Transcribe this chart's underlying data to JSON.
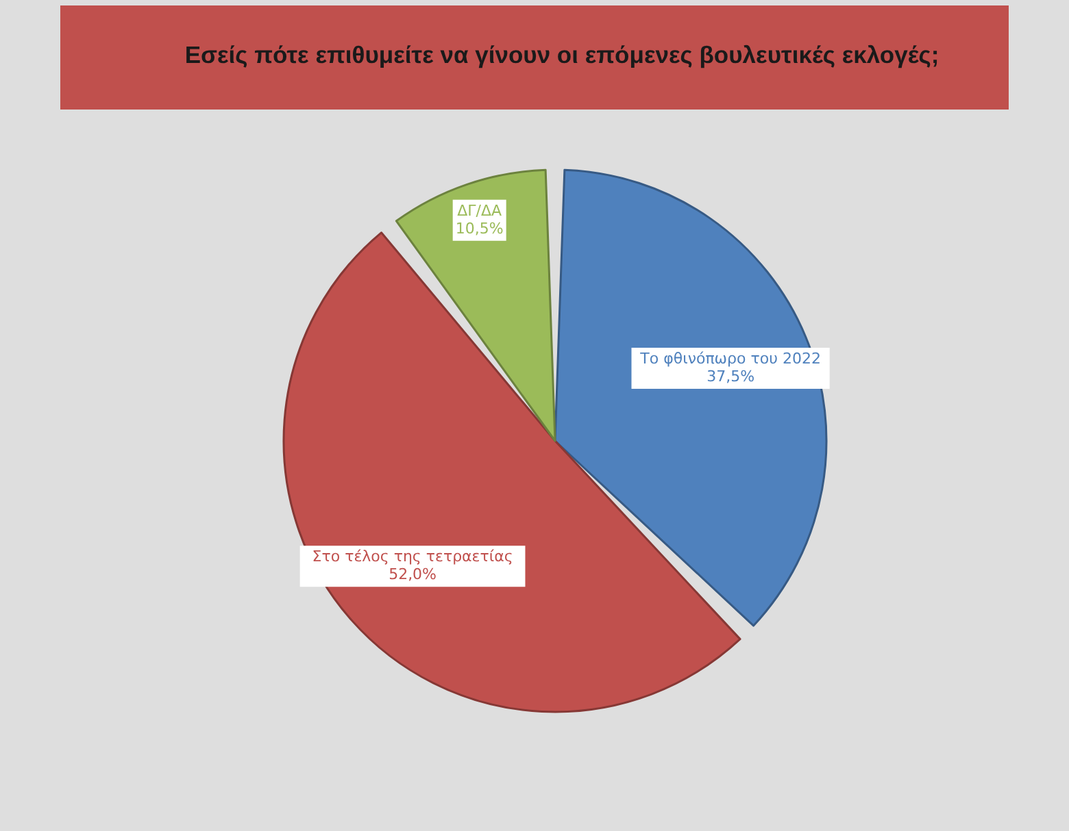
{
  "chart_data": {
    "type": "pie",
    "title": "Εσείς πότε επιθυμείτε να γίνουν οι επόμενες βουλευτικές εκλογές;",
    "categories": [
      "Το φθινόπωρο του 2022",
      "Στο τέλος της τετραετίας",
      "ΔΓ/ΔΑ"
    ],
    "values": [
      37.5,
      52.0,
      10.5
    ],
    "colors": [
      "#4f81bd",
      "#c0504d",
      "#9bbb59"
    ],
    "value_labels": [
      "37,5%",
      "52,0%",
      "10,5%"
    ]
  }
}
